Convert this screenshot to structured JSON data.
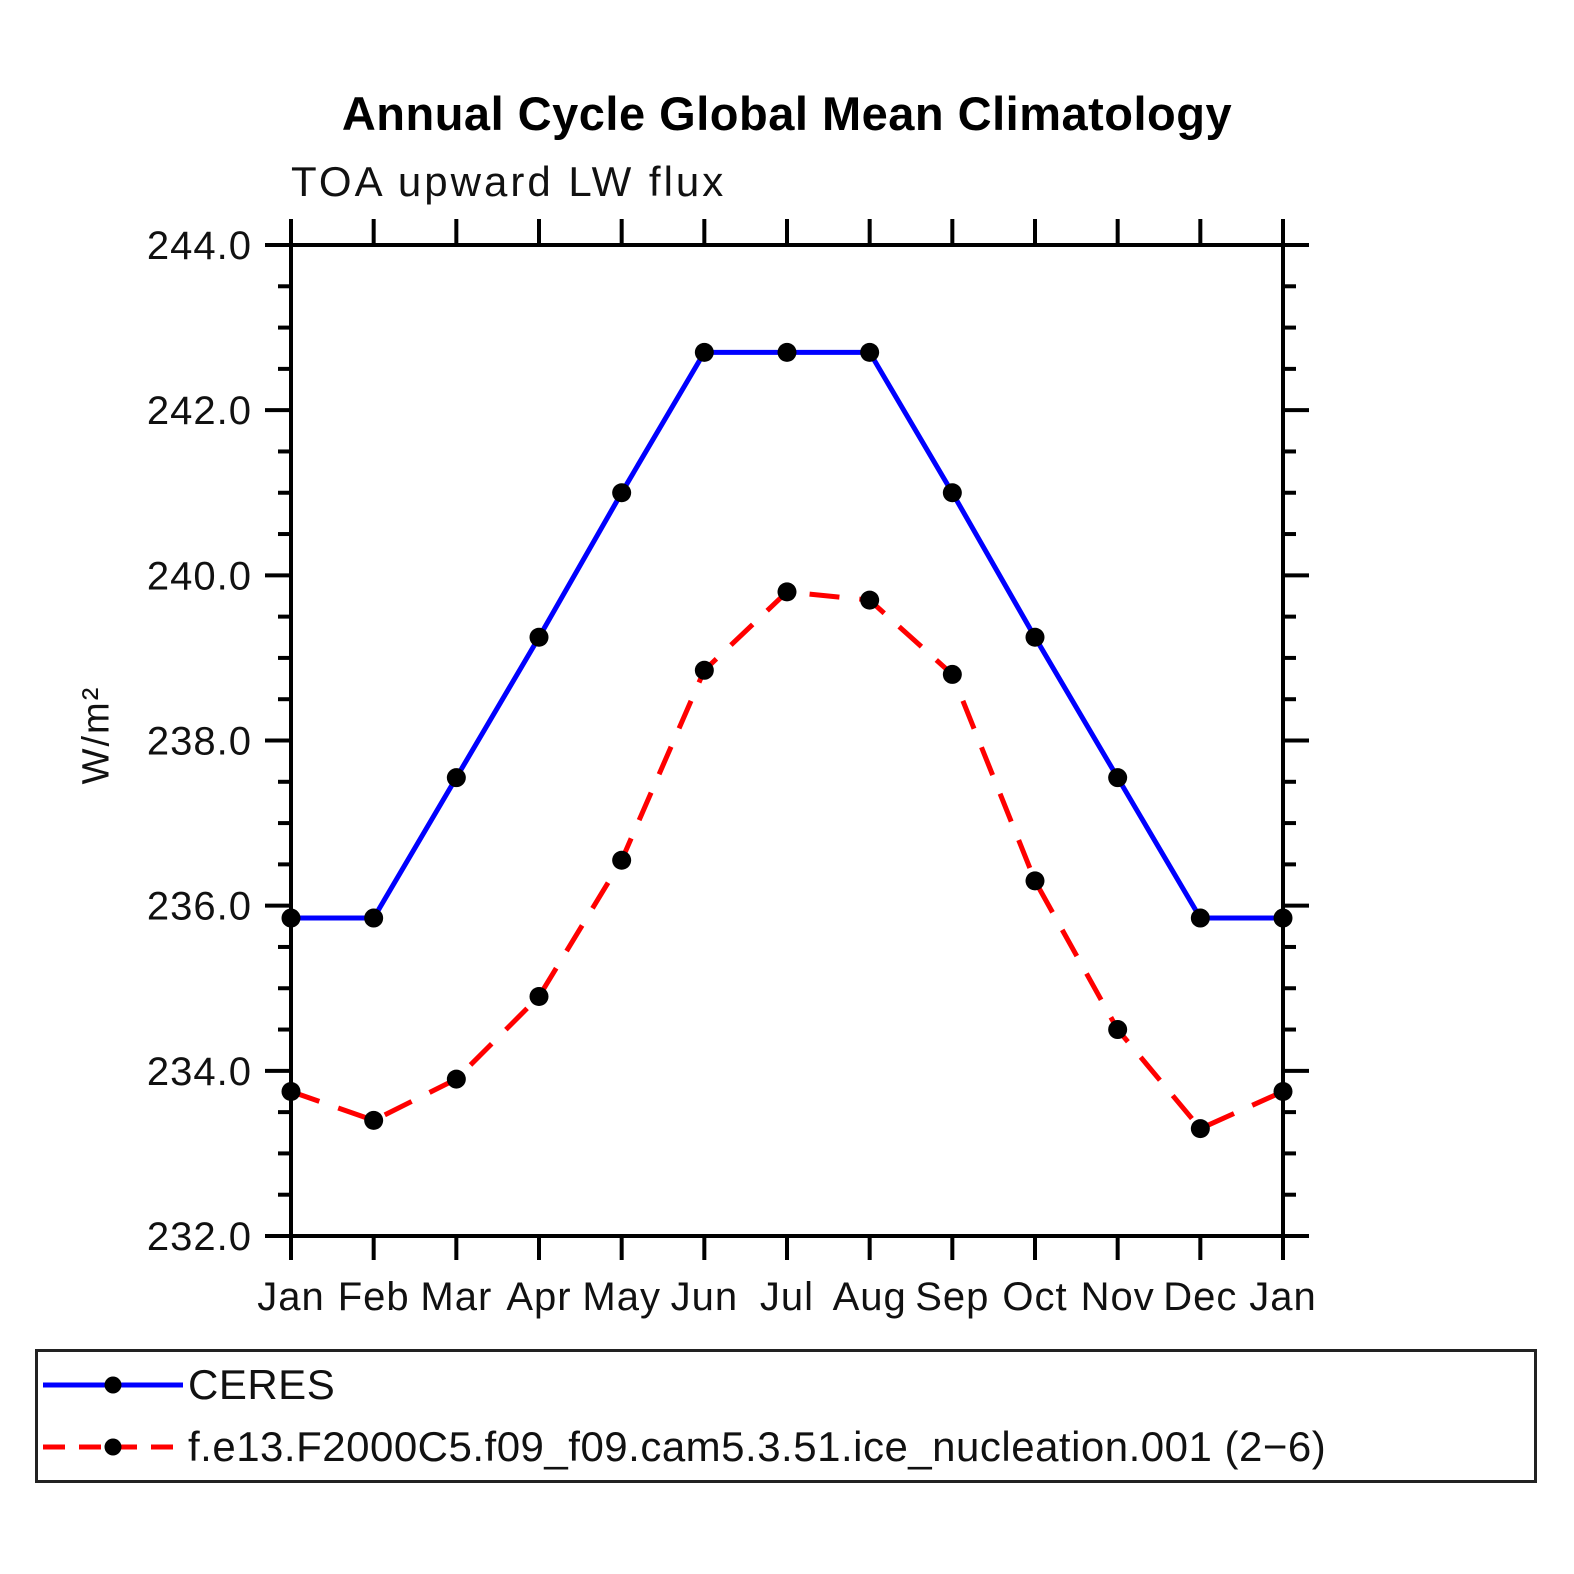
{
  "title": "Annual Cycle Global Mean Climatology",
  "subtitle": "TOA upward LW flux",
  "ylabel": "W/m²",
  "colors": {
    "ceres_line": "#0000ff",
    "model_line": "#ff0000",
    "marker": "#000000",
    "axis": "#000000"
  },
  "legend": [
    {
      "label": "CERES",
      "line_style": "solid",
      "color": "#0000ff"
    },
    {
      "label": "f.e13.F2000C5.f09_f09.cam5.3.51.ice_nucleation.001 (2−6)",
      "line_style": "dashed",
      "color": "#ff0000"
    }
  ],
  "chart_data": {
    "type": "line",
    "title": "Annual Cycle Global Mean Climatology",
    "subtitle": "TOA upward LW flux",
    "xlabel": "",
    "ylabel": "W/m²",
    "x_tick_labels": [
      "Jan",
      "Feb",
      "Mar",
      "Apr",
      "May",
      "Jun",
      "Jul",
      "Aug",
      "Sep",
      "Oct",
      "Nov",
      "Dec",
      "Jan"
    ],
    "ylim": [
      232.0,
      244.0
    ],
    "y_major_step": 2.0,
    "y_minor_step": 0.5,
    "y_tick_labels": [
      "232.0",
      "234.0",
      "236.0",
      "238.0",
      "240.0",
      "242.0",
      "244.0"
    ],
    "grid": false,
    "legend_position": "bottom",
    "marker": "filled-circle",
    "series": [
      {
        "name": "CERES",
        "id": "ceres",
        "color": "#0000ff",
        "line": "solid",
        "values": [
          235.85,
          235.85,
          237.55,
          239.25,
          241.0,
          242.7,
          242.7,
          242.7,
          241.0,
          239.25,
          237.55,
          235.85,
          235.85
        ]
      },
      {
        "name": "f.e13.F2000C5.f09_f09.cam5.3.51.ice_nucleation.001 (2−6)",
        "id": "ice-nucleation-model",
        "color": "#ff0000",
        "line": "dashed",
        "values": [
          233.75,
          233.4,
          233.9,
          234.9,
          236.55,
          238.85,
          239.8,
          239.7,
          238.8,
          236.3,
          234.5,
          233.3,
          233.75
        ]
      }
    ]
  }
}
